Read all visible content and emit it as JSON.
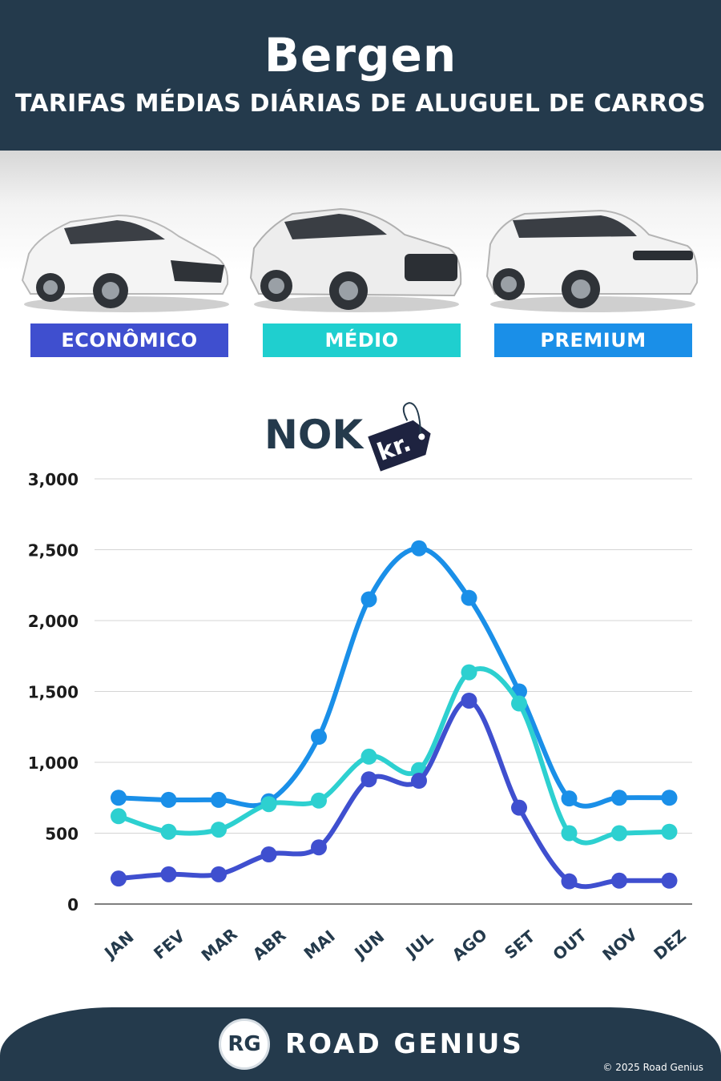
{
  "header": {
    "city": "Bergen",
    "subtitle": "TARIFAS MÉDIAS DIÁRIAS DE ALUGUEL DE CARROS"
  },
  "categories": [
    {
      "label": "ECONÔMICO",
      "color": "#3f4fcf"
    },
    {
      "label": "MÉDIO",
      "color": "#1fcfcf"
    },
    {
      "label": "PREMIUM",
      "color": "#1a8fe8"
    }
  ],
  "currency": {
    "code": "NOK",
    "tag": "kr."
  },
  "chart_data": {
    "type": "line",
    "x": [
      "JAN",
      "FEV",
      "MAR",
      "ABR",
      "MAI",
      "JUN",
      "JUL",
      "AGO",
      "SET",
      "OUT",
      "NOV",
      "DEZ"
    ],
    "series": [
      {
        "name": "PREMIUM",
        "color": "#1a8fe8",
        "values": [
          750,
          735,
          735,
          725,
          1180,
          2150,
          2510,
          2160,
          1500,
          745,
          750,
          750
        ]
      },
      {
        "name": "MÉDIO",
        "color": "#2dd0d0",
        "values": [
          620,
          510,
          525,
          705,
          730,
          1040,
          945,
          1635,
          1415,
          500,
          500,
          510
        ]
      },
      {
        "name": "ECONÔMICO",
        "color": "#3f4fcf",
        "values": [
          180,
          210,
          210,
          350,
          400,
          880,
          870,
          1435,
          680,
          160,
          165,
          165
        ]
      }
    ],
    "yticks": [
      "0",
      "500",
      "1,000",
      "1,500",
      "2,000",
      "2,500",
      "3,000"
    ],
    "ylim": [
      0,
      3000
    ],
    "grid": true
  },
  "footer": {
    "logo": "RG",
    "brand": "ROAD GENIUS",
    "copyright": "© 2025 Road Genius"
  }
}
